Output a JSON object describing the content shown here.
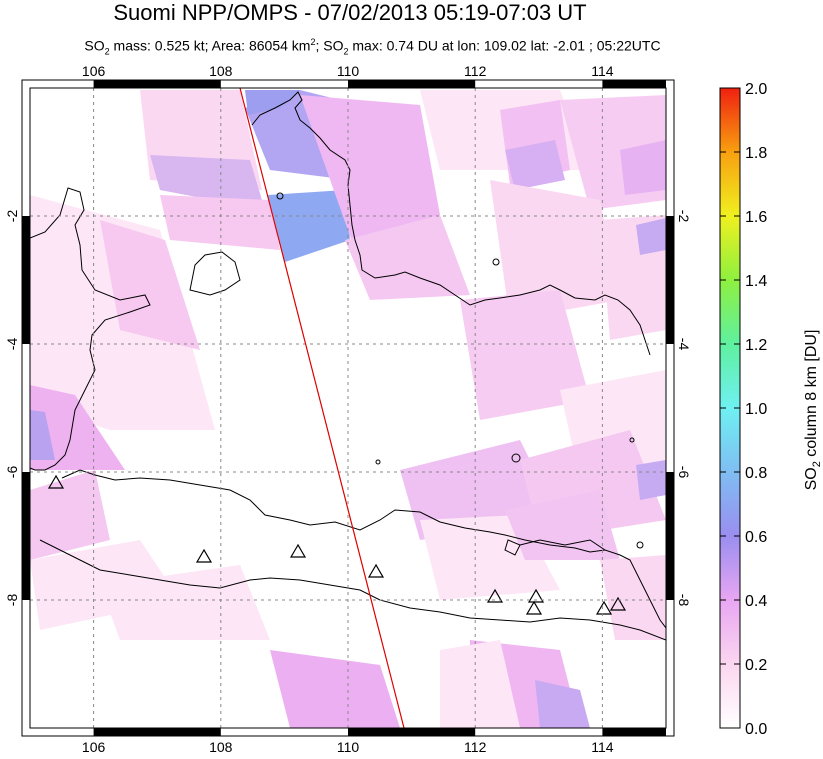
{
  "title": "Suomi NPP/OMPS - 07/02/2013 05:19-07:03 UT",
  "subtitle": {
    "p1": "SO",
    "p1_sub": "2",
    "p2": " mass: 0.525 kt; Area: 86054 km",
    "p2_sup": "2",
    "p3": "; SO",
    "p3_sub": "2",
    "p4": " max: 0.74 DU at lon: 109.02 lat: -2.01 ; 05:22UTC"
  },
  "map": {
    "lon_range": [
      105.0,
      115.0
    ],
    "lat_range": [
      -10.0,
      0.0
    ],
    "lon_ticks": [
      "106",
      "108",
      "110",
      "112",
      "114"
    ],
    "lat_ticks": [
      "-2",
      "-4",
      "-6",
      "-8"
    ],
    "grid": "dashed",
    "orbit_track_color": "#dd0000",
    "volcano_marker": "triangle-icon"
  },
  "colorbar": {
    "label": "SO2 column 8 km [DU]",
    "label_main": "SO",
    "label_sub": "2",
    "label_rest": " column 8 km [DU]",
    "ticks": [
      "0.0",
      "0.2",
      "0.4",
      "0.6",
      "0.8",
      "1.0",
      "1.2",
      "1.4",
      "1.6",
      "1.8",
      "2.0"
    ],
    "range": [
      0.0,
      2.0
    ]
  }
}
